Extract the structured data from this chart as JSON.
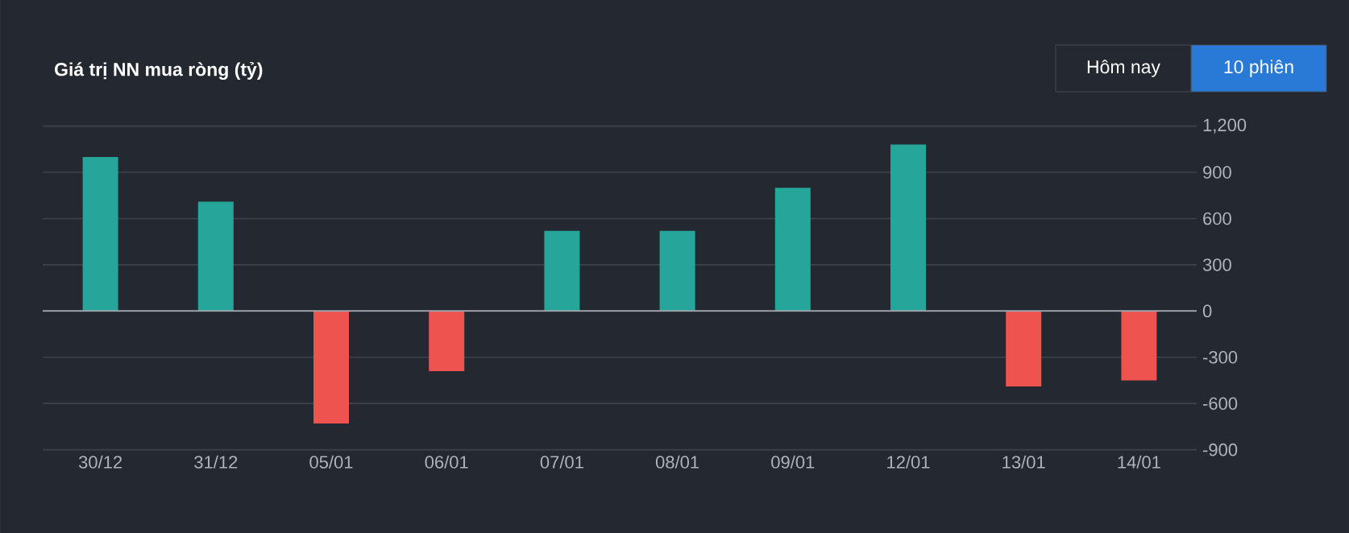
{
  "chart_data": {
    "type": "bar",
    "title": "Giá trị NN mua ròng (tỷ)",
    "categories": [
      "30/12",
      "31/12",
      "05/01",
      "06/01",
      "07/01",
      "08/01",
      "09/01",
      "12/01",
      "13/01",
      "14/01"
    ],
    "values": [
      1000,
      710,
      -730,
      -390,
      520,
      520,
      800,
      1080,
      -490,
      -450
    ],
    "colors": [
      "#26a69a",
      "#26a69a",
      "#ef5350",
      "#ef5350",
      "#26a69a",
      "#26a69a",
      "#26a69a",
      "#26a69a",
      "#ef5350",
      "#ef5350"
    ],
    "ylim": [
      -900,
      1200
    ],
    "yticks": [
      -900,
      -600,
      -300,
      0,
      300,
      600,
      900,
      {
        "value": 1200,
        "label": "1,200"
      }
    ],
    "grid": "y",
    "annotations": [
      "Hôm nay",
      "10 phiên"
    ]
  }
}
